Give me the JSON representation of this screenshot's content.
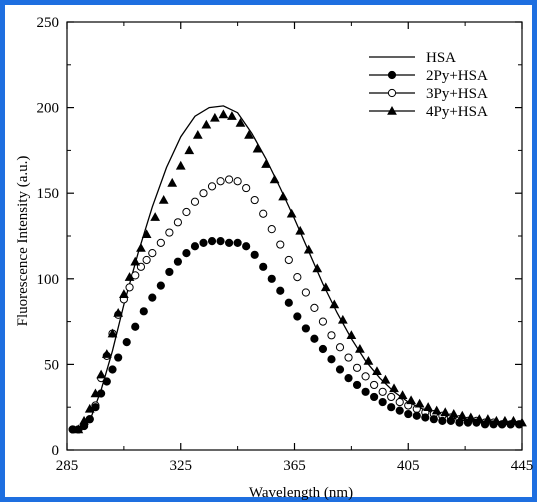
{
  "chart_data": {
    "type": "line",
    "title": "",
    "xlabel": "Wavelength (nm)",
    "ylabel": "Fluorescence Intensity (a.u.)",
    "xlim": [
      285,
      445
    ],
    "ylim": [
      0,
      250
    ],
    "x_ticks": [
      285,
      325,
      365,
      405,
      445
    ],
    "y_ticks": [
      0,
      50,
      100,
      150,
      200,
      250
    ],
    "grid": false,
    "legend_position": "top-right",
    "series": [
      {
        "name": "HSA",
        "marker": "line",
        "points": [
          [
            289,
            12
          ],
          [
            293,
            17
          ],
          [
            297,
            35
          ],
          [
            301,
            58
          ],
          [
            305,
            85
          ],
          [
            310,
            115
          ],
          [
            315,
            142
          ],
          [
            320,
            165
          ],
          [
            325,
            183
          ],
          [
            330,
            195
          ],
          [
            335,
            200
          ],
          [
            340,
            201
          ],
          [
            345,
            197
          ],
          [
            350,
            185
          ],
          [
            355,
            170
          ],
          [
            360,
            153
          ],
          [
            365,
            135
          ],
          [
            370,
            116
          ],
          [
            375,
            97
          ],
          [
            380,
            80
          ],
          [
            385,
            65
          ],
          [
            390,
            52
          ],
          [
            395,
            42
          ],
          [
            400,
            34
          ],
          [
            405,
            28
          ],
          [
            410,
            24
          ],
          [
            415,
            21
          ],
          [
            420,
            19
          ],
          [
            425,
            17
          ],
          [
            430,
            16
          ],
          [
            435,
            15
          ],
          [
            440,
            15
          ],
          [
            445,
            15
          ]
        ]
      },
      {
        "name": "2Py+HSA",
        "marker": "filled-circle",
        "points": [
          [
            287,
            12
          ],
          [
            289,
            12
          ],
          [
            291,
            14
          ],
          [
            293,
            18
          ],
          [
            295,
            25
          ],
          [
            297,
            33
          ],
          [
            299,
            40
          ],
          [
            301,
            47
          ],
          [
            303,
            54
          ],
          [
            306,
            63
          ],
          [
            309,
            72
          ],
          [
            312,
            81
          ],
          [
            315,
            89
          ],
          [
            318,
            96
          ],
          [
            321,
            104
          ],
          [
            324,
            110
          ],
          [
            327,
            115
          ],
          [
            330,
            119
          ],
          [
            333,
            121
          ],
          [
            336,
            122
          ],
          [
            339,
            122
          ],
          [
            342,
            121
          ],
          [
            345,
            121
          ],
          [
            348,
            119
          ],
          [
            351,
            114
          ],
          [
            354,
            107
          ],
          [
            357,
            100
          ],
          [
            360,
            93
          ],
          [
            363,
            86
          ],
          [
            366,
            78
          ],
          [
            369,
            71
          ],
          [
            372,
            65
          ],
          [
            375,
            59
          ],
          [
            378,
            53
          ],
          [
            381,
            47
          ],
          [
            384,
            42
          ],
          [
            387,
            38
          ],
          [
            390,
            34
          ],
          [
            393,
            31
          ],
          [
            396,
            28
          ],
          [
            399,
            25
          ],
          [
            402,
            23
          ],
          [
            405,
            21
          ],
          [
            408,
            20
          ],
          [
            411,
            19
          ],
          [
            414,
            18
          ],
          [
            417,
            17
          ],
          [
            420,
            17
          ],
          [
            423,
            16
          ],
          [
            426,
            16
          ],
          [
            429,
            16
          ],
          [
            432,
            15
          ],
          [
            435,
            15
          ],
          [
            438,
            15
          ],
          [
            441,
            15
          ],
          [
            444,
            15
          ]
        ]
      },
      {
        "name": "3Py+HSA",
        "marker": "open-circle",
        "points": [
          [
            287,
            12
          ],
          [
            289,
            12
          ],
          [
            291,
            14
          ],
          [
            293,
            18
          ],
          [
            295,
            26
          ],
          [
            297,
            42
          ],
          [
            299,
            55
          ],
          [
            301,
            68
          ],
          [
            303,
            79
          ],
          [
            305,
            88
          ],
          [
            307,
            95
          ],
          [
            309,
            102
          ],
          [
            311,
            107
          ],
          [
            313,
            111
          ],
          [
            315,
            115
          ],
          [
            318,
            121
          ],
          [
            321,
            127
          ],
          [
            324,
            133
          ],
          [
            327,
            139
          ],
          [
            330,
            145
          ],
          [
            333,
            150
          ],
          [
            336,
            154
          ],
          [
            339,
            157
          ],
          [
            342,
            158
          ],
          [
            345,
            157
          ],
          [
            348,
            153
          ],
          [
            351,
            146
          ],
          [
            354,
            138
          ],
          [
            357,
            129
          ],
          [
            360,
            120
          ],
          [
            363,
            111
          ],
          [
            366,
            101
          ],
          [
            369,
            92
          ],
          [
            372,
            83
          ],
          [
            375,
            75
          ],
          [
            378,
            67
          ],
          [
            381,
            60
          ],
          [
            384,
            54
          ],
          [
            387,
            48
          ],
          [
            390,
            43
          ],
          [
            393,
            38
          ],
          [
            396,
            34
          ],
          [
            399,
            31
          ],
          [
            402,
            28
          ],
          [
            405,
            26
          ],
          [
            408,
            24
          ],
          [
            411,
            22
          ],
          [
            414,
            21
          ],
          [
            417,
            20
          ],
          [
            420,
            19
          ],
          [
            423,
            18
          ],
          [
            426,
            17
          ],
          [
            429,
            17
          ],
          [
            432,
            16
          ],
          [
            435,
            16
          ],
          [
            438,
            15
          ],
          [
            441,
            15
          ],
          [
            444,
            15
          ]
        ]
      },
      {
        "name": "4Py+HSA",
        "marker": "filled-triangle",
        "points": [
          [
            289,
            12
          ],
          [
            291,
            17
          ],
          [
            293,
            24
          ],
          [
            295,
            33
          ],
          [
            297,
            44
          ],
          [
            299,
            56
          ],
          [
            301,
            68
          ],
          [
            303,
            80
          ],
          [
            305,
            91
          ],
          [
            307,
            101
          ],
          [
            309,
            110
          ],
          [
            311,
            118
          ],
          [
            313,
            126
          ],
          [
            316,
            136
          ],
          [
            319,
            146
          ],
          [
            322,
            156
          ],
          [
            325,
            166
          ],
          [
            328,
            175
          ],
          [
            331,
            184
          ],
          [
            334,
            190
          ],
          [
            337,
            194
          ],
          [
            340,
            196
          ],
          [
            343,
            195
          ],
          [
            346,
            191
          ],
          [
            349,
            184
          ],
          [
            352,
            176
          ],
          [
            355,
            167
          ],
          [
            358,
            158
          ],
          [
            361,
            148
          ],
          [
            364,
            138
          ],
          [
            367,
            128
          ],
          [
            370,
            117
          ],
          [
            373,
            106
          ],
          [
            376,
            95
          ],
          [
            379,
            85
          ],
          [
            382,
            76
          ],
          [
            385,
            67
          ],
          [
            388,
            59
          ],
          [
            391,
            52
          ],
          [
            394,
            46
          ],
          [
            397,
            41
          ],
          [
            400,
            36
          ],
          [
            403,
            32
          ],
          [
            406,
            29
          ],
          [
            409,
            27
          ],
          [
            412,
            25
          ],
          [
            415,
            23
          ],
          [
            418,
            22
          ],
          [
            421,
            21
          ],
          [
            424,
            20
          ],
          [
            427,
            19
          ],
          [
            430,
            18
          ],
          [
            433,
            18
          ],
          [
            436,
            17
          ],
          [
            439,
            17
          ],
          [
            442,
            17
          ],
          [
            445,
            16
          ]
        ]
      }
    ]
  }
}
